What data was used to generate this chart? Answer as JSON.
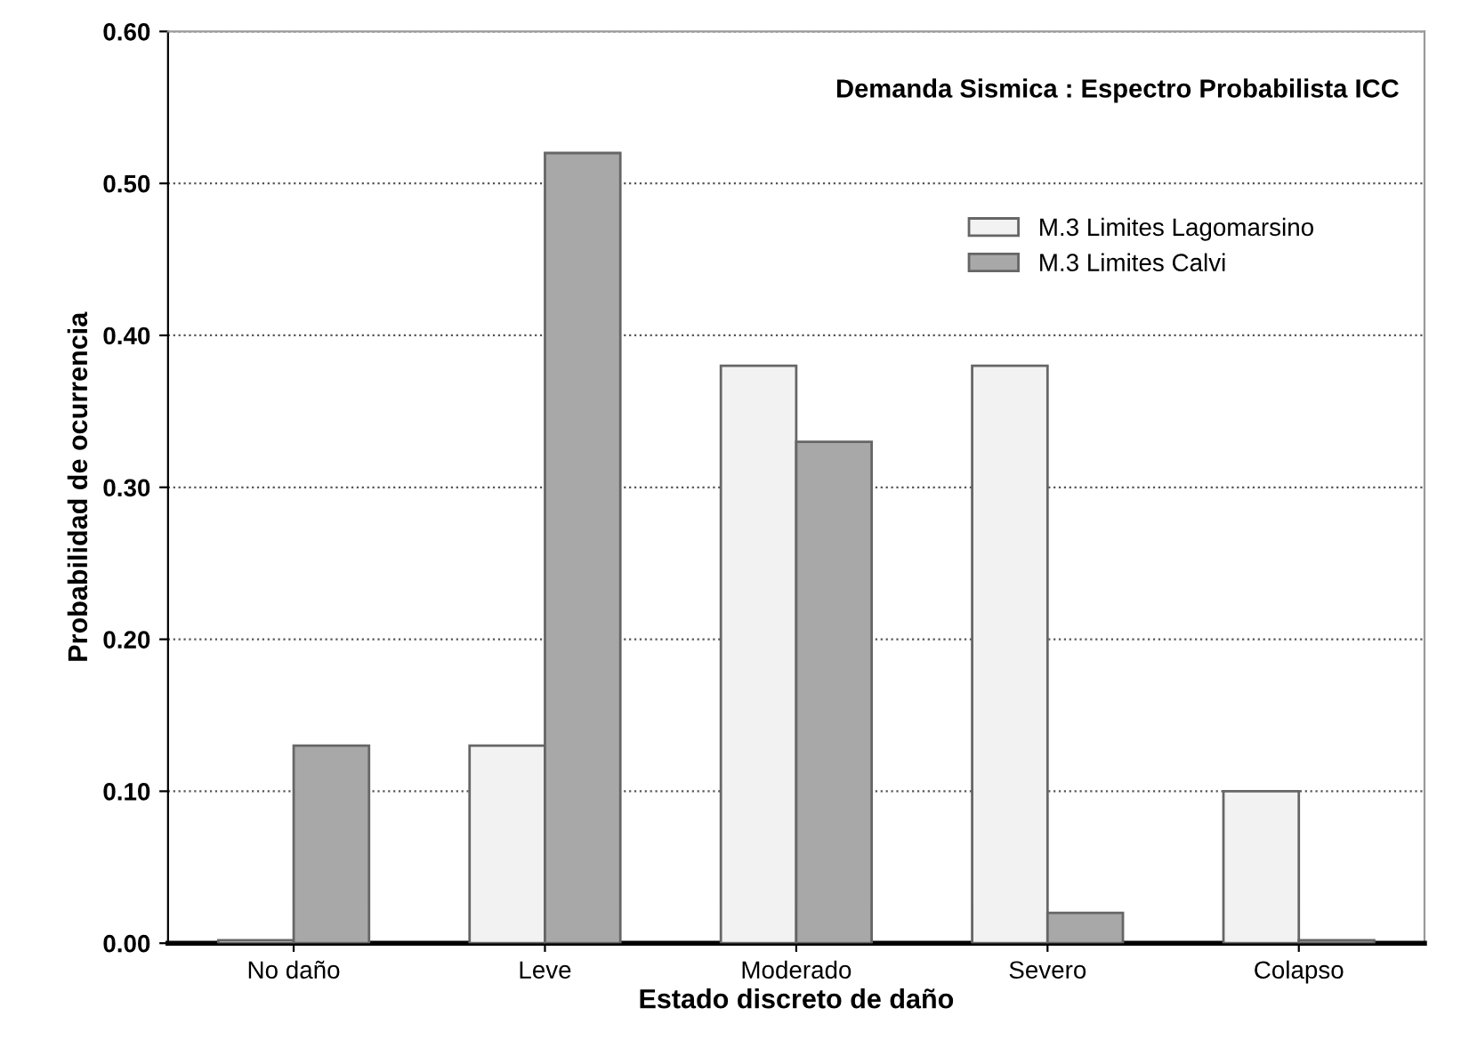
{
  "chart_data": {
    "type": "bar",
    "title": "Demanda Sismica : Espectro Probabilista ICC",
    "xlabel": "Estado discreto de daño",
    "ylabel": "Probabilidad de ocurrencia",
    "categories": [
      "No daño",
      "Leve",
      "Moderado",
      "Severo",
      "Colapso"
    ],
    "series": [
      {
        "name": "M.3 Limites Lagomarsino",
        "color": "#f2f2f2",
        "values": [
          0.002,
          0.13,
          0.38,
          0.38,
          0.1
        ]
      },
      {
        "name": "M.3 Limites Calvi",
        "color": "#a8a8a8",
        "values": [
          0.13,
          0.52,
          0.33,
          0.02,
          0.002
        ]
      }
    ],
    "ylim": [
      0,
      0.6
    ],
    "yticks": [
      {
        "value": 0,
        "label": "0.00"
      },
      {
        "value": 0.1,
        "label": "0.10"
      },
      {
        "value": 0.2,
        "label": "0.20"
      },
      {
        "value": 0.3,
        "label": "0.30"
      },
      {
        "value": 0.4,
        "label": "0.40"
      },
      {
        "value": 0.5,
        "label": "0.50"
      },
      {
        "value": 0.6,
        "label": "0.60"
      }
    ],
    "grid": "y",
    "legend": "top right"
  }
}
